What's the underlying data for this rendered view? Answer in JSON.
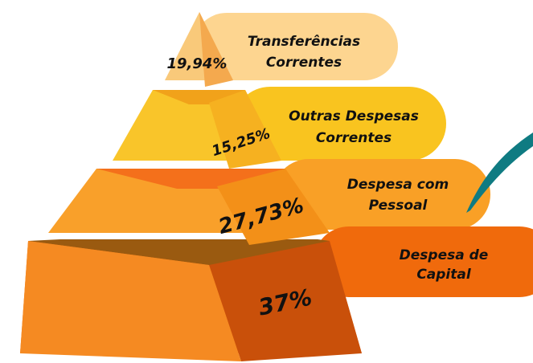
{
  "levels": [
    {
      "value": "19,94%",
      "label": [
        "Transferências",
        "Correntes"
      ]
    },
    {
      "value": "15,25%",
      "label": [
        "Outras Despesas",
        "Correntes"
      ]
    },
    {
      "value": "27,73%",
      "label": [
        "Despesa com",
        "Pessoal"
      ]
    },
    {
      "value": "37%",
      "label": [
        "Despesa de",
        "Capital"
      ]
    }
  ]
}
